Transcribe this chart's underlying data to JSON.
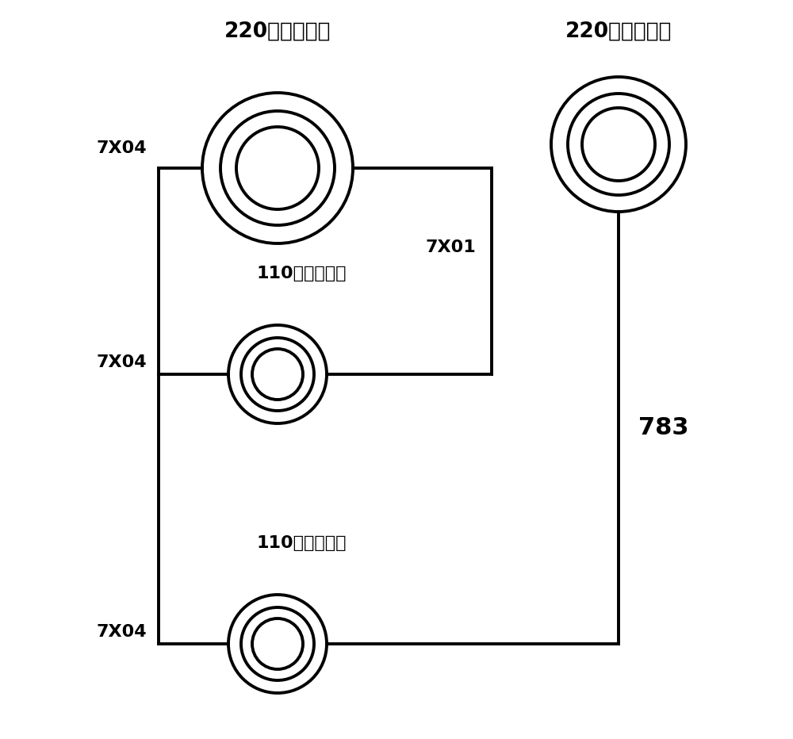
{
  "title_left": "220千伏杨庄变",
  "title_right": "220千伏威庄变",
  "label_7x04_1": "7X04",
  "label_7x04_2": "7X04",
  "label_7x04_3": "7X04",
  "label_7x01": "7X01",
  "label_783": "783",
  "label_110_1": "110千伏蓠沟变",
  "label_110_2": "110千伏泗洪变",
  "bg_color": "#ffffff",
  "line_color": "#000000",
  "text_color": "#000000",
  "line_width": 2.8,
  "font_size_title": 19,
  "font_size_label": 16,
  "font_size_783": 22
}
